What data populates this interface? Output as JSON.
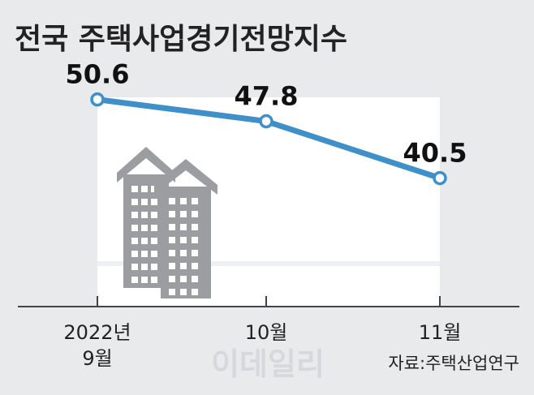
{
  "title": "전국 주택사업경기전망지수",
  "source": "자료:주택산업연구",
  "watermark": "이데일리",
  "colors": {
    "background": "#e9eaec",
    "plot_area": "#ffffff",
    "line": "#3f8fc8",
    "marker_fill": "#ffffff",
    "axis": "#444444",
    "building": "#9b9da0",
    "building_light": "#ffffff"
  },
  "icons": [
    "apartment-building-icon"
  ],
  "chart_data": {
    "type": "line",
    "categories": [
      [
        "2022년",
        "9월"
      ],
      [
        "10월"
      ],
      [
        "11월"
      ]
    ],
    "series": [
      {
        "values": [
          50.6,
          47.8,
          40.5
        ]
      }
    ],
    "value_labels": [
      "50.6",
      "47.8",
      "40.5"
    ],
    "ylim": [
      24,
      54
    ],
    "grid": false
  }
}
